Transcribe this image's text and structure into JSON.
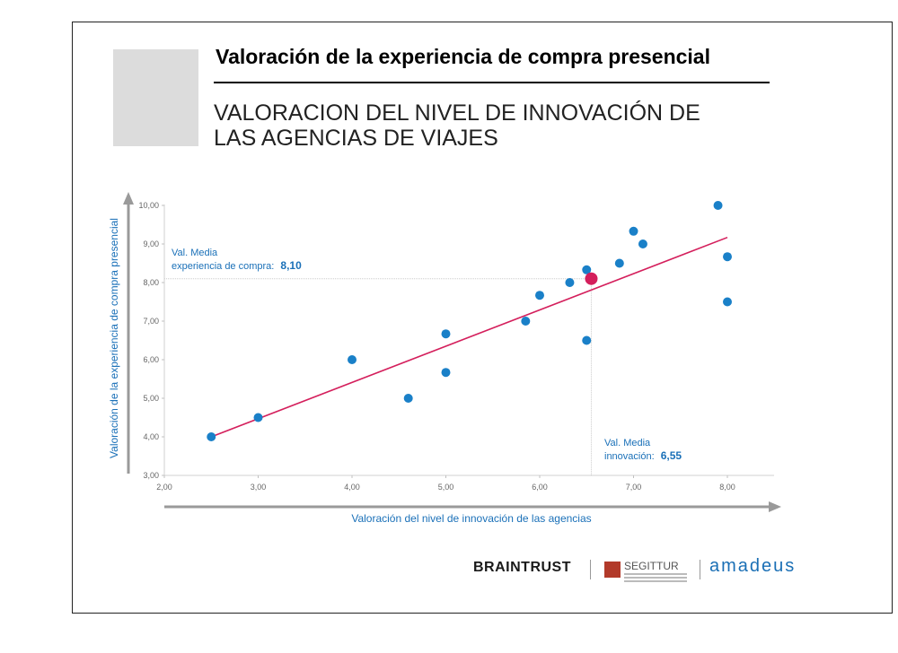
{
  "header": {
    "title": "Valoración de la experiencia de compra presencial",
    "subtitle_line1": "VALORACION DEL NIVEL DE INNOVACIÓN DE",
    "subtitle_line2": "LAS AGENCIAS DE VIAJES"
  },
  "chart_data": {
    "type": "scatter",
    "xlabel": "Valoración del nivel de innovación de las agencias",
    "ylabel": "Valoración de la experiencia de compra presencial",
    "xlim": [
      2.0,
      8.5
    ],
    "ylim": [
      3.0,
      10.0
    ],
    "x_ticks": [
      "2,00",
      "3,00",
      "4,00",
      "5,00",
      "6,00",
      "7,00",
      "8,00"
    ],
    "y_ticks": [
      "3,00",
      "4,00",
      "5,00",
      "6,00",
      "7,00",
      "8,00",
      "9,00",
      "10,00"
    ],
    "points": [
      {
        "x": 2.5,
        "y": 4.0
      },
      {
        "x": 3.0,
        "y": 4.5
      },
      {
        "x": 4.0,
        "y": 6.0
      },
      {
        "x": 4.6,
        "y": 5.0
      },
      {
        "x": 5.0,
        "y": 6.67
      },
      {
        "x": 5.0,
        "y": 5.67
      },
      {
        "x": 5.85,
        "y": 7.0
      },
      {
        "x": 6.0,
        "y": 7.67
      },
      {
        "x": 6.32,
        "y": 8.0
      },
      {
        "x": 6.5,
        "y": 8.33
      },
      {
        "x": 6.5,
        "y": 6.5
      },
      {
        "x": 6.85,
        "y": 8.5
      },
      {
        "x": 7.0,
        "y": 9.33
      },
      {
        "x": 7.1,
        "y": 9.0
      },
      {
        "x": 7.9,
        "y": 10.0
      },
      {
        "x": 8.0,
        "y": 8.67
      },
      {
        "x": 8.0,
        "y": 7.5
      }
    ],
    "mean_point": {
      "x": 6.55,
      "y": 8.1
    },
    "trendline": {
      "x1": 2.5,
      "y1": 4.0,
      "x2": 8.0,
      "y2": 9.17
    },
    "annotations": {
      "mean_y_label": "Val. Media",
      "mean_y_text": "experiencia de compra:",
      "mean_y_value": "8,10",
      "mean_x_label": "Val. Media",
      "mean_x_text": "innovación:",
      "mean_x_value": "6,55"
    },
    "colors": {
      "point": "#1a80c8",
      "mean_point": "#d41f5c",
      "trendline": "#d41f5c",
      "axis_text": "#1a70b8",
      "axis_arrow": "#9a9a9a"
    }
  },
  "logos": {
    "braintrust": "BRAINTRUST",
    "segittur": "SEGITTUR",
    "amadeus": "amadeus"
  }
}
